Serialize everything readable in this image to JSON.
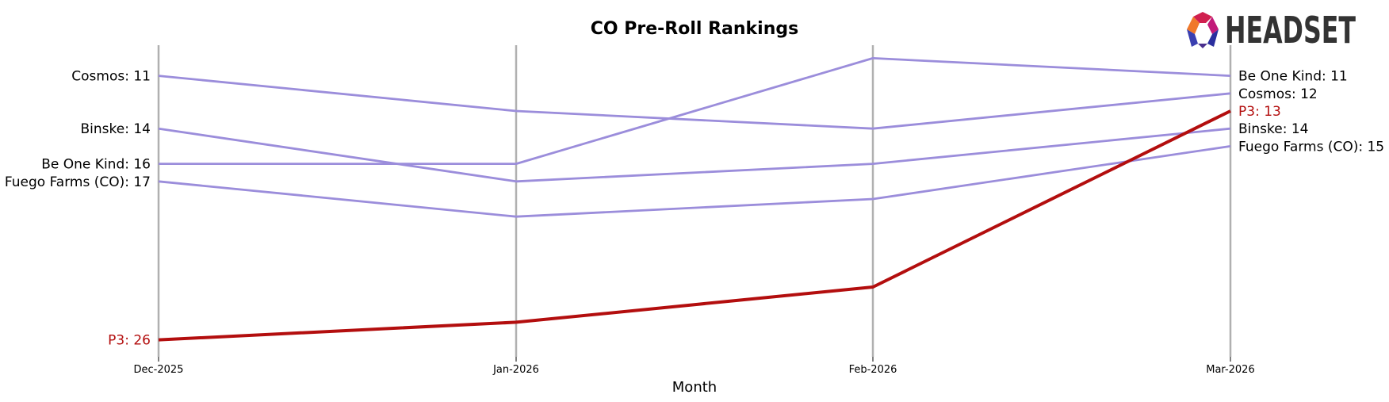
{
  "chart_data": {
    "type": "line",
    "title": "CO Pre-Roll Rankings",
    "xlabel": "Month",
    "ylabel": "",
    "y_inverted": true,
    "ylim": [
      9.0,
      27.0
    ],
    "categories": [
      "Dec-2025",
      "Jan-2026",
      "Feb-2026",
      "Mar-2026"
    ],
    "grid": "vertical",
    "series": [
      {
        "name": "Cosmos",
        "values": [
          11,
          13,
          14,
          12
        ],
        "color": "#9b8ddb",
        "highlight": false
      },
      {
        "name": "Binske",
        "values": [
          14,
          17,
          16,
          14
        ],
        "color": "#9b8ddb",
        "highlight": false
      },
      {
        "name": "Be One Kind",
        "values": [
          16,
          16,
          10,
          11
        ],
        "color": "#9b8ddb",
        "highlight": false
      },
      {
        "name": "Fuego Farms (CO)",
        "values": [
          17,
          19,
          18,
          15
        ],
        "color": "#9b8ddb",
        "highlight": false
      },
      {
        "name": "P3",
        "values": [
          26,
          25,
          23,
          13
        ],
        "color": "#b30e0e",
        "highlight": true
      }
    ]
  },
  "logo": {
    "text": "HEADSET"
  }
}
